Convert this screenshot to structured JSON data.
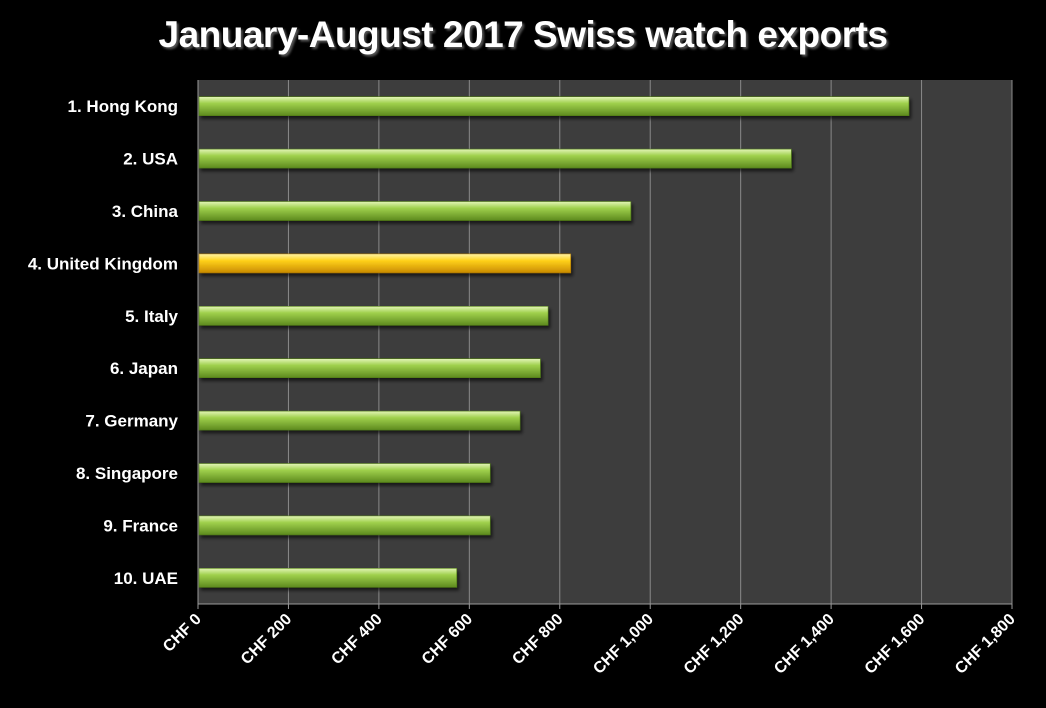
{
  "chart_data": {
    "type": "bar",
    "orientation": "horizontal",
    "title": "January-August 2017 Swiss watch exports",
    "categories": [
      "1.  Hong Kong",
      "2.  USA",
      "3.  China",
      "4.  United Kingdom",
      "5.  Italy",
      "6.  Japan",
      "7.  Germany",
      "8.  Singapore",
      "9.  France",
      "10.  UAE"
    ],
    "values": [
      1570,
      1310,
      955,
      822,
      772,
      755,
      710,
      644,
      644,
      570
    ],
    "highlight_index": 3,
    "xlim": [
      0,
      1800
    ],
    "xticks": [
      0,
      200,
      400,
      600,
      800,
      1000,
      1200,
      1400,
      1600,
      1800
    ],
    "xtick_labels": [
      "CHF 0",
      "CHF 200",
      "CHF 400",
      "CHF 600",
      "CHF 800",
      "CHF 1,000",
      "CHF 1,200",
      "CHF 1,400",
      "CHF 1,600",
      "CHF 1,800"
    ],
    "xlabel": "",
    "ylabel": "",
    "grid": "vertical",
    "legend": "none",
    "colors": {
      "background": "#000000",
      "plot_area": "#3d3d3d",
      "gridline": "#8a8a8a",
      "bar": "#8dc63f",
      "bar_highlight": "#ffc000",
      "text": "#ffffff"
    }
  }
}
